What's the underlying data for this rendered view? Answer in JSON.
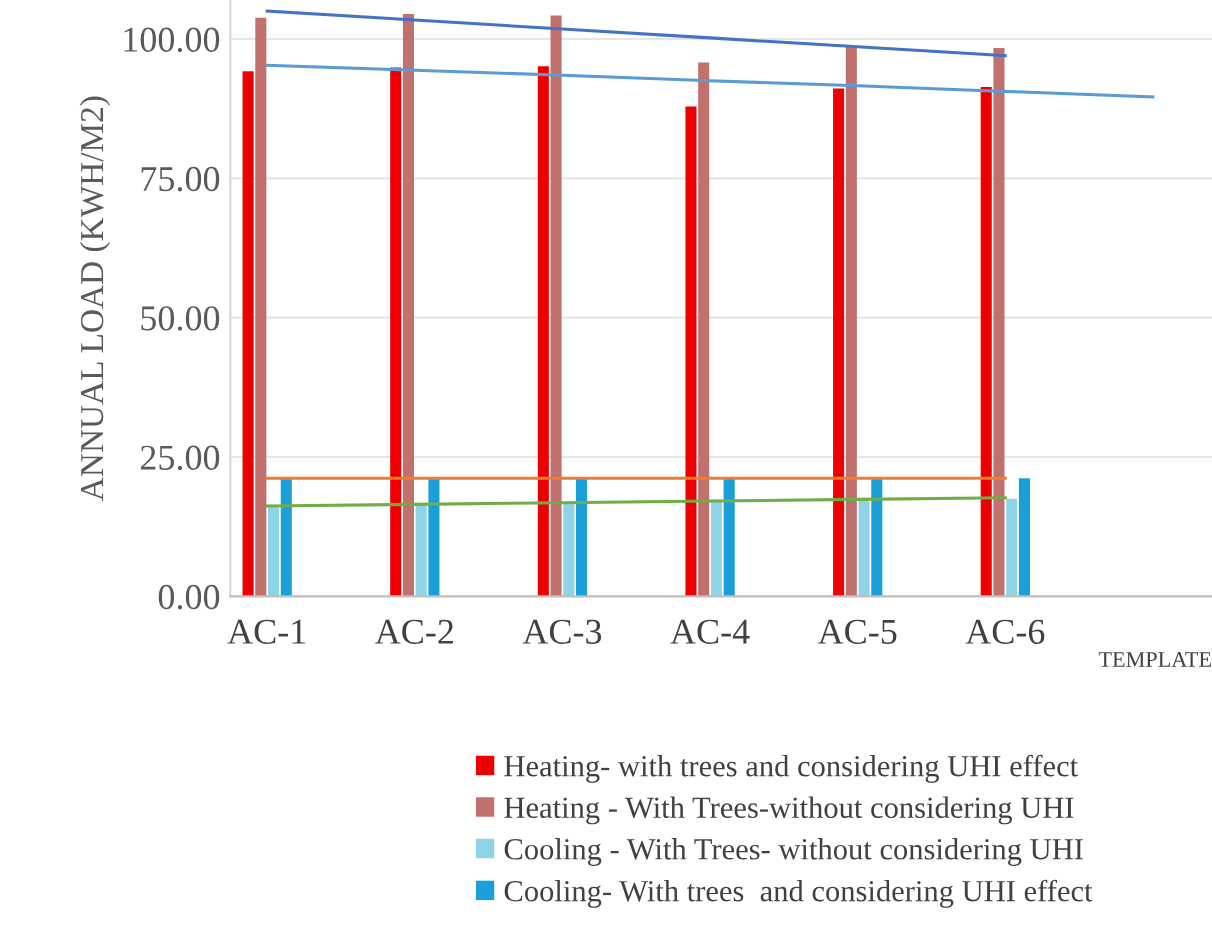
{
  "chart_data": {
    "type": "bar",
    "categories": [
      "AC-1",
      "AC-2",
      "AC-3",
      "AC-4",
      "AC-5",
      "AC-6",
      null
    ],
    "series": [
      {
        "name": "Heating- with trees and considering UHI effect",
        "color": "#ee0000",
        "values": [
          94.2,
          94.9,
          95.1,
          87.9,
          91.1,
          91.4,
          null
        ]
      },
      {
        "name": "Heating - With Trees-without considering UHI",
        "color": "#c0706d",
        "values": [
          103.8,
          104.5,
          104.2,
          95.8,
          98.7,
          98.4,
          null
        ]
      },
      {
        "name": "Cooling - With Trees- without considering UHI",
        "color": "#8fd3e6",
        "values": [
          16.3,
          16.5,
          16.7,
          17.0,
          17.2,
          17.5,
          null
        ]
      },
      {
        "name": "Cooling- With trees  and considering UHI effect",
        "color": "#1a9fd8",
        "values": [
          21.2,
          21.2,
          21.2,
          21.2,
          21.2,
          21.2,
          null
        ]
      },
      {
        "type": "line",
        "color": "#4472c4",
        "values": [
          105.0,
          103.4,
          101.8,
          100.2,
          98.6,
          97.0,
          null
        ]
      },
      {
        "type": "line",
        "color": "#5b9bd5",
        "values": [
          95.3,
          94.4,
          93.5,
          92.5,
          91.6,
          90.6,
          89.6
        ]
      },
      {
        "type": "line",
        "color": "#ed7d31",
        "values": [
          21.2,
          21.2,
          21.2,
          21.2,
          21.2,
          21.2,
          null
        ]
      },
      {
        "type": "line",
        "color": "#70ad47",
        "values": [
          16.2,
          16.5,
          16.8,
          17.1,
          17.4,
          17.7,
          null
        ]
      }
    ],
    "ylabel": "ANNUAL LOAD (KWH/M2)",
    "xlabel": "TEMPLATE",
    "ylim": [
      0,
      107
    ],
    "yticks": [
      {
        "value": 0,
        "label": "0.00"
      },
      {
        "value": 25,
        "label": "25.00"
      },
      {
        "value": 50,
        "label": "50.00"
      },
      {
        "value": 75,
        "label": "75.00"
      },
      {
        "value": 100,
        "label": "100.00"
      }
    ],
    "grid": "y",
    "legend": "bottom"
  }
}
